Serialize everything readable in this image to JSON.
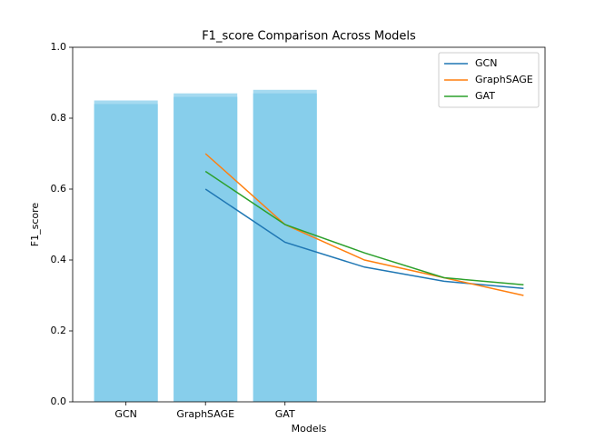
{
  "chart_data": {
    "type": "bar",
    "title": "F1_score Comparison Across Models",
    "xlabel": "Models",
    "ylabel": "F1_score",
    "categories": [
      "GCN",
      "GraphSAGE",
      "GAT"
    ],
    "bars": [
      {
        "color": "#87ceeb",
        "opacity": 0.75,
        "values": [
          0.85,
          0.87,
          0.88
        ]
      },
      {
        "color": "#87ceeb",
        "opacity": 1,
        "values": [
          0.84,
          0.86,
          0.87
        ]
      }
    ],
    "x": [
      1,
      2,
      3,
      4,
      5
    ],
    "series": [
      {
        "name": "GCN",
        "type": "line",
        "color": "#1f77b4",
        "values": [
          0.6,
          0.45,
          0.38,
          0.34,
          0.32
        ]
      },
      {
        "name": "GraphSAGE",
        "type": "line",
        "color": "#ff7f0e",
        "values": [
          0.7,
          0.5,
          0.4,
          0.35,
          0.3
        ]
      },
      {
        "name": "GAT",
        "type": "line",
        "color": "#2ca02c",
        "values": [
          0.65,
          0.5,
          0.42,
          0.35,
          0.33
        ]
      }
    ],
    "xlim": [
      -0.67,
      5.27
    ],
    "ylim": [
      0,
      1.0
    ],
    "yticks": [
      {
        "value": 0,
        "label": "0.0"
      },
      0.2,
      0.4,
      0.6,
      0.8,
      {
        "value": 1,
        "label": "1.0"
      }
    ],
    "legend": "upper right"
  }
}
